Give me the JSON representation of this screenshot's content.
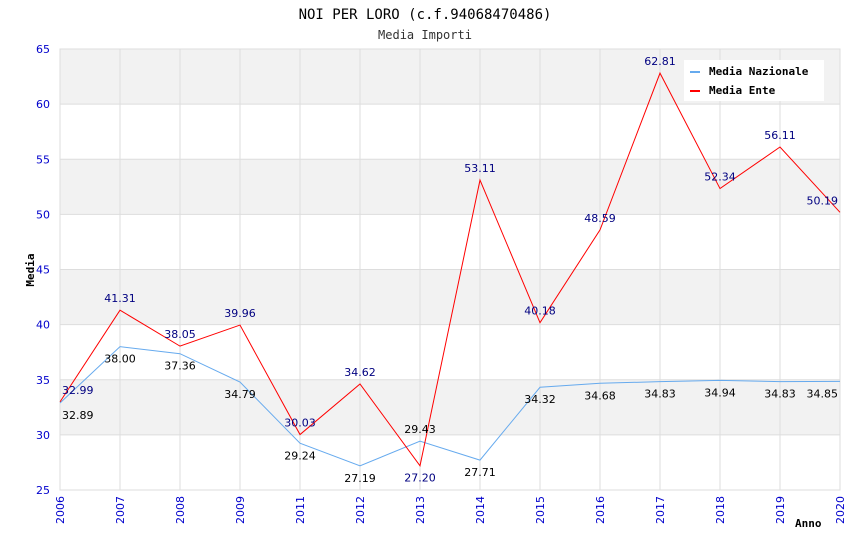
{
  "chart_data": {
    "type": "line",
    "title": "NOI PER LORO (c.f.94068470486)",
    "subtitle": "Media Importi",
    "xlabel": "Anno",
    "ylabel": "Media",
    "ylim": [
      25,
      65
    ],
    "yticks": [
      25,
      30,
      35,
      40,
      45,
      50,
      55,
      60,
      65
    ],
    "categories": [
      "2006",
      "2007",
      "2008",
      "2009",
      "2011",
      "2012",
      "2013",
      "2014",
      "2015",
      "2016",
      "2017",
      "2018",
      "2019",
      "2020"
    ],
    "legend_position": "top-right",
    "series": [
      {
        "name": "Media Nazionale",
        "color": "#66aaee",
        "label_color": "#000000",
        "values": [
          32.89,
          38.0,
          37.36,
          34.79,
          29.24,
          27.19,
          29.43,
          27.71,
          34.32,
          34.68,
          34.83,
          34.94,
          34.83,
          34.85
        ]
      },
      {
        "name": "Media Ente",
        "color": "#ff0000",
        "label_color": "#000080",
        "values": [
          32.99,
          41.31,
          38.05,
          39.96,
          30.03,
          34.62,
          27.2,
          53.11,
          40.18,
          48.59,
          62.81,
          52.34,
          56.11,
          50.19
        ]
      }
    ]
  }
}
